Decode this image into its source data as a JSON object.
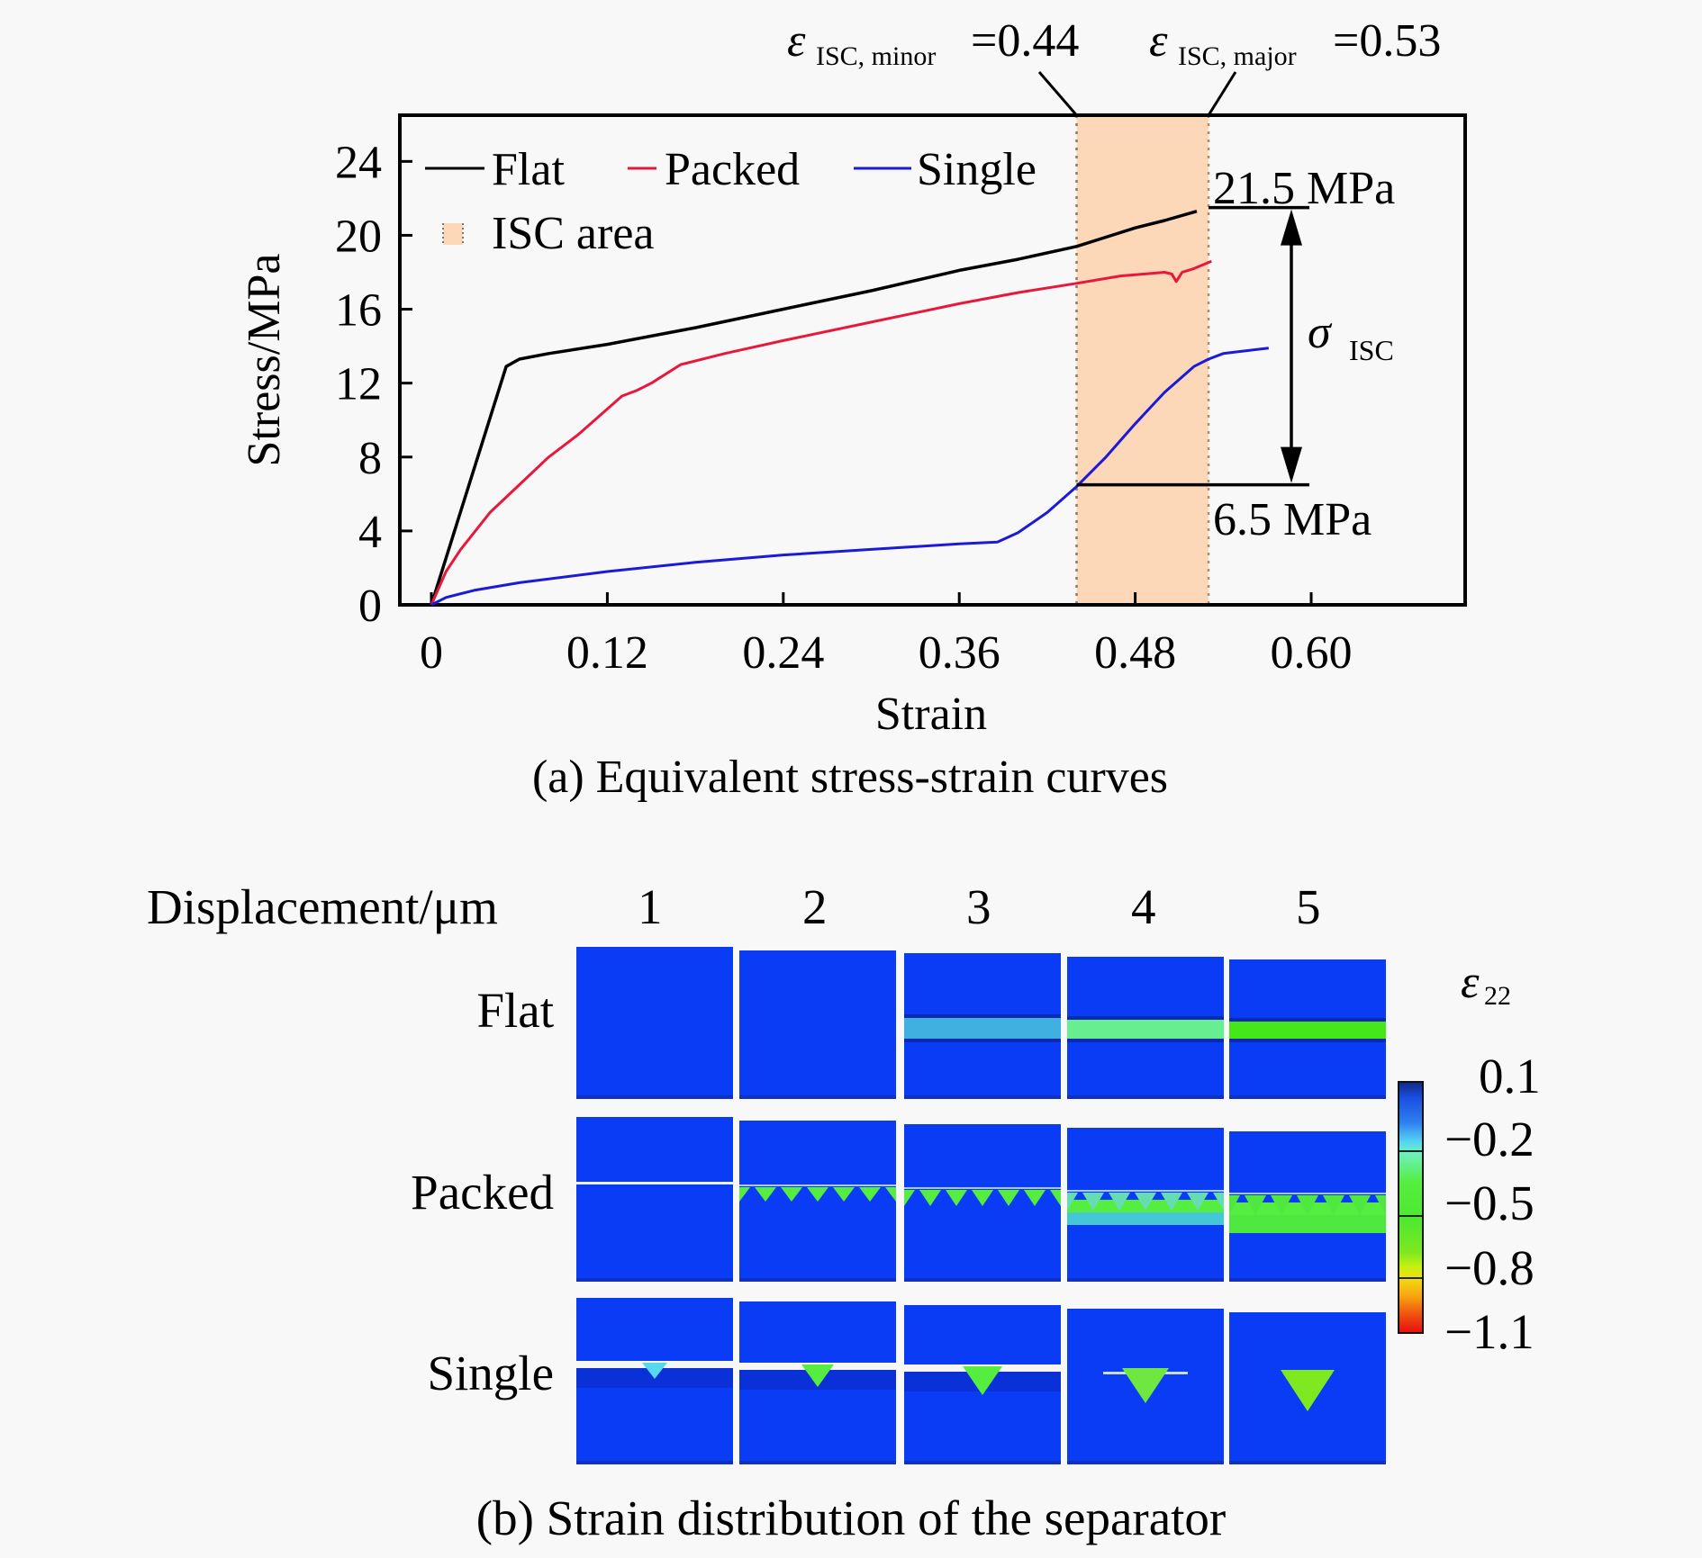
{
  "annotations": {
    "eps_minor_symbol": "ε",
    "eps_minor_sub": "ISC, minor",
    "eps_minor_value": "=0.44",
    "eps_major_symbol": "ε",
    "eps_major_sub": "ISC, major",
    "eps_major_value": "=0.53",
    "upper_label": "21.5 MPa",
    "lower_label": "6.5 MPa",
    "sigma_symbol": "σ",
    "sigma_sub": "ISC"
  },
  "chart_data": {
    "type": "line",
    "title": "",
    "caption": "(a) Equivalent stress-strain curves",
    "xlabel": "Strain",
    "ylabel": "Stress/MPa",
    "xlim": [
      -0.0215,
      0.705
    ],
    "ylim": [
      0,
      26.5
    ],
    "xticks": [
      0,
      0.12,
      0.24,
      0.36,
      0.48,
      0.6
    ],
    "xtick_labels": [
      "0",
      "0.12",
      "0.24",
      "0.36",
      "0.48",
      "0.60"
    ],
    "yticks": [
      0,
      4,
      8,
      12,
      16,
      20,
      24
    ],
    "ytick_labels": [
      "0",
      "4",
      "8",
      "12",
      "16",
      "20",
      "24"
    ],
    "grid": false,
    "legend_position": "top-left",
    "series": [
      {
        "name": "Flat",
        "color": "#000000",
        "x": [
          0,
          0.051,
          0.06,
          0.08,
          0.12,
          0.18,
          0.24,
          0.3,
          0.36,
          0.4,
          0.44,
          0.46,
          0.48,
          0.5,
          0.522
        ],
        "y": [
          0,
          12.9,
          13.3,
          13.6,
          14.1,
          15.0,
          16.0,
          17.0,
          18.1,
          18.7,
          19.4,
          19.9,
          20.4,
          20.8,
          21.3
        ]
      },
      {
        "name": "Packed",
        "color": "#e8183c",
        "x": [
          0,
          0.01,
          0.02,
          0.04,
          0.06,
          0.08,
          0.1,
          0.12,
          0.13,
          0.14,
          0.15,
          0.17,
          0.2,
          0.24,
          0.3,
          0.36,
          0.4,
          0.44,
          0.47,
          0.5,
          0.505,
          0.508,
          0.512,
          0.52,
          0.532
        ],
        "y": [
          0,
          1.8,
          3.0,
          5.0,
          6.5,
          8.0,
          9.2,
          10.6,
          11.3,
          11.6,
          12.0,
          13.0,
          13.6,
          14.3,
          15.3,
          16.3,
          16.9,
          17.4,
          17.8,
          18.0,
          17.9,
          17.5,
          18.0,
          18.2,
          18.6
        ]
      },
      {
        "name": "Single",
        "color": "#1a1ad8",
        "x": [
          0,
          0.01,
          0.03,
          0.06,
          0.12,
          0.18,
          0.24,
          0.3,
          0.36,
          0.386,
          0.4,
          0.42,
          0.44,
          0.46,
          0.48,
          0.5,
          0.52,
          0.53,
          0.54,
          0.571
        ],
        "y": [
          0,
          0.4,
          0.8,
          1.2,
          1.8,
          2.3,
          2.7,
          3.0,
          3.3,
          3.4,
          3.9,
          5.0,
          6.4,
          8.0,
          9.8,
          11.5,
          12.9,
          13.3,
          13.6,
          13.9
        ]
      }
    ],
    "legend": [
      {
        "label": "Flat",
        "kind": "line",
        "color": "#000000"
      },
      {
        "label": "Packed",
        "kind": "line",
        "color": "#e8183c"
      },
      {
        "label": "Single",
        "kind": "line",
        "color": "#1a1ad8"
      },
      {
        "label": "ISC area",
        "kind": "area",
        "color": "#fcd8b8"
      }
    ],
    "shaded_region": {
      "label": "ISC area",
      "x_start": 0.44,
      "x_end": 0.53,
      "color": "#fcd8b8"
    },
    "reference_lines": [
      {
        "value": 21.5,
        "label": "21.5 MPa"
      },
      {
        "value": 6.5,
        "label": "6.5 MPa"
      }
    ]
  },
  "panel_b": {
    "header_label": "Displacement/μm",
    "columns": [
      "1",
      "2",
      "3",
      "4",
      "5"
    ],
    "rows": [
      "Flat",
      "Packed",
      "Single"
    ],
    "caption": "(b) Strain distribution of the separator",
    "colorbar": {
      "symbol": "ε",
      "sub": "22",
      "ticks": [
        "0.1",
        "−0.2",
        "−0.5",
        "−0.8",
        "−1.1"
      ],
      "colors": [
        "#102a8a",
        "#2f7ff0",
        "#58d8f0",
        "#55ee40",
        "#c8f010",
        "#f0e010",
        "#f8a010",
        "#e81010"
      ]
    },
    "field_colors": {
      "base": "#0a3cf5",
      "flat_bands": [
        "",
        "",
        "#3fb0e0",
        "#66ee90",
        "#44e818"
      ],
      "packed_bands": [
        "",
        "#55ee40",
        "#55ee40",
        "#66ddb0",
        "#4ee840"
      ],
      "single_tip": [
        "#58d8f0",
        "#55ee40",
        "#55ee40",
        "#6ee840",
        "#7ee820"
      ]
    }
  }
}
